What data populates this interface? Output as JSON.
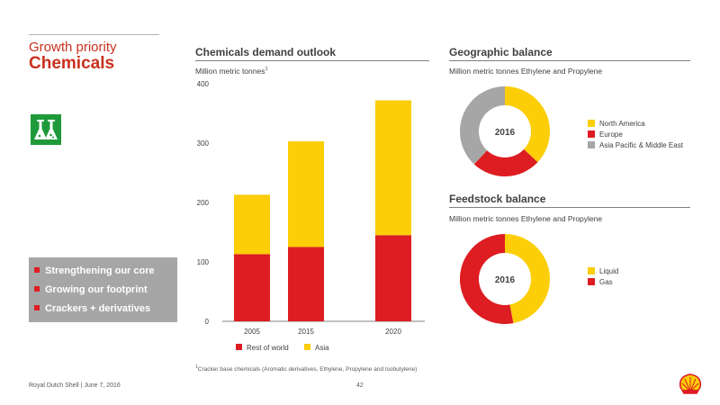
{
  "header": {
    "section_label": "Growth priority",
    "title": "Chemicals"
  },
  "bullets": [
    "Strengthening our core",
    "Growing our footprint",
    "Crackers + derivatives"
  ],
  "demand": {
    "title": "Chemicals demand outlook",
    "subtitle": "Million metric tonnes",
    "subtitle_sup": "1",
    "footnote": "Cracker base chemicals (Aromatic derivatives, Ethylene, Propylene and Isobutylene)",
    "footnote_sup": "1"
  },
  "geo": {
    "title": "Geographic balance",
    "subtitle": "Million metric tonnes Ethylene and Propylene",
    "center_label": "2016"
  },
  "feed": {
    "title": "Feedstock balance",
    "subtitle": "Million metric tonnes Ethylene and Propylene",
    "center_label": "2016"
  },
  "footer": {
    "left": "Royal Dutch Shell | June 7, 2016",
    "page": "42"
  },
  "colors": {
    "red": "#dd1d21",
    "yellow": "#fbce07",
    "grey": "#a6a6a6",
    "icon_green": "#1f9a3a"
  },
  "icons": {
    "chemicals": "flask-icon",
    "logo": "shell-logo-icon"
  },
  "chart_data": [
    {
      "type": "bar",
      "stacked": true,
      "categories": [
        "2005",
        "2015",
        "2020"
      ],
      "series": [
        {
          "name": "Rest of world",
          "values": [
            113,
            125,
            145
          ],
          "color": "#dd1d21"
        },
        {
          "name": "Asia",
          "values": [
            100,
            178,
            227
          ],
          "color": "#fbce07"
        }
      ],
      "yticks": [
        0,
        100,
        200,
        300,
        400
      ],
      "ylim": [
        0,
        400
      ],
      "grid": false,
      "legend_position": "bottom"
    },
    {
      "type": "pie",
      "donut": true,
      "labels": [
        "North America",
        "Europe",
        "Asia Pacific & Middle East"
      ],
      "values": [
        37,
        25,
        38
      ],
      "colors": [
        "#fbce07",
        "#dd1d21",
        "#a6a6a6"
      ],
      "legend_position": "right"
    },
    {
      "type": "pie",
      "donut": true,
      "labels": [
        "Liquid",
        "Gas"
      ],
      "values": [
        47,
        53
      ],
      "colors": [
        "#fbce07",
        "#dd1d21"
      ],
      "legend_position": "right"
    }
  ]
}
